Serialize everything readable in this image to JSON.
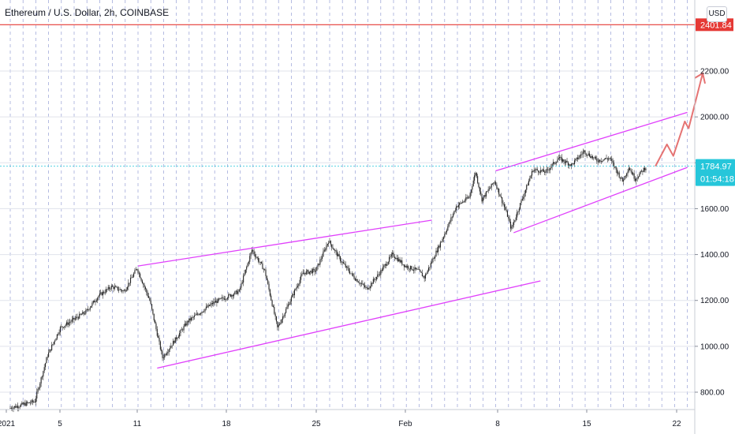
{
  "header": {
    "title": "Ethereum / U.S. Dollar, 2h, COINBASE",
    "currency_button": "USD"
  },
  "colors": {
    "channel": "#e040fb",
    "resistance_line": "#e53935",
    "arrow": "#e57373",
    "price_label_bg": "#26c6da",
    "candle_up": "#26a69a",
    "candle_down": "#ef5350",
    "candle": "#131722",
    "vgrid": "#3f51b5"
  },
  "chart_data": {
    "type": "candlestick",
    "title": "Ethereum / U.S. Dollar, 2h, COINBASE",
    "yaxis": {
      "ticks": [
        800,
        1000,
        1200,
        1400,
        1600,
        1800,
        2000,
        2200
      ],
      "tick_labels": [
        "800.00",
        "1000.00",
        "1200.00",
        "1400.00",
        "1600.00",
        "1800.00",
        "2000.00",
        "2200.00"
      ],
      "range": [
        730,
        2470
      ]
    },
    "xaxis": {
      "tick_labels": [
        "2021",
        "5",
        "11",
        "18",
        "25",
        "Feb",
        "8",
        "15",
        "22"
      ],
      "range_days": [
        -0.5,
        53
      ]
    },
    "price_path": [
      {
        "day": 0,
        "price": 730
      },
      {
        "day": 2,
        "price": 760
      },
      {
        "day": 3,
        "price": 960
      },
      {
        "day": 4,
        "price": 1080
      },
      {
        "day": 6,
        "price": 1150
      },
      {
        "day": 7,
        "price": 1220
      },
      {
        "day": 8,
        "price": 1260
      },
      {
        "day": 9,
        "price": 1240
      },
      {
        "day": 10,
        "price": 1340
      },
      {
        "day": 11,
        "price": 1200
      },
      {
        "day": 12,
        "price": 950
      },
      {
        "day": 13,
        "price": 1030
      },
      {
        "day": 14,
        "price": 1110
      },
      {
        "day": 16,
        "price": 1190
      },
      {
        "day": 18,
        "price": 1240
      },
      {
        "day": 19,
        "price": 1420
      },
      {
        "day": 20,
        "price": 1330
      },
      {
        "day": 21,
        "price": 1080
      },
      {
        "day": 22,
        "price": 1200
      },
      {
        "day": 23,
        "price": 1320
      },
      {
        "day": 24,
        "price": 1330
      },
      {
        "day": 25,
        "price": 1460
      },
      {
        "day": 26,
        "price": 1370
      },
      {
        "day": 27,
        "price": 1300
      },
      {
        "day": 28,
        "price": 1250
      },
      {
        "day": 29,
        "price": 1320
      },
      {
        "day": 30,
        "price": 1400
      },
      {
        "day": 31,
        "price": 1350
      },
      {
        "day": 32,
        "price": 1330
      },
      {
        "day": 32.5,
        "price": 1300
      },
      {
        "day": 33,
        "price": 1360
      },
      {
        "day": 34,
        "price": 1480
      },
      {
        "day": 35,
        "price": 1610
      },
      {
        "day": 36,
        "price": 1650
      },
      {
        "day": 36.5,
        "price": 1760
      },
      {
        "day": 37,
        "price": 1640
      },
      {
        "day": 38,
        "price": 1720
      },
      {
        "day": 39,
        "price": 1570
      },
      {
        "day": 39.3,
        "price": 1510
      },
      {
        "day": 40,
        "price": 1620
      },
      {
        "day": 41,
        "price": 1770
      },
      {
        "day": 42,
        "price": 1760
      },
      {
        "day": 43,
        "price": 1820
      },
      {
        "day": 44,
        "price": 1790
      },
      {
        "day": 45,
        "price": 1850
      },
      {
        "day": 46,
        "price": 1810
      },
      {
        "day": 47,
        "price": 1820
      },
      {
        "day": 48,
        "price": 1720
      },
      {
        "day": 48.5,
        "price": 1780
      },
      {
        "day": 49,
        "price": 1730
      },
      {
        "day": 49.8,
        "price": 1780
      }
    ],
    "horizontal_levels": [
      {
        "price": 2401.84,
        "label": "2401.84"
      }
    ],
    "trendlines": [
      {
        "from": {
          "day": 10,
          "price": 1350
        },
        "to": {
          "day": 33,
          "price": 1550
        }
      },
      {
        "from": {
          "day": 11.5,
          "price": 905
        },
        "to": {
          "day": 41.5,
          "price": 1285
        }
      },
      {
        "from": {
          "day": 38,
          "price": 1765
        },
        "to": {
          "day": 53,
          "price": 2020
        }
      },
      {
        "from": {
          "day": 39.4,
          "price": 1495
        },
        "to": {
          "day": 53,
          "price": 1780
        }
      }
    ],
    "projection_arrow": [
      {
        "day": 50.5,
        "price": 1785
      },
      {
        "day": 51.4,
        "price": 1880
      },
      {
        "day": 51.9,
        "price": 1830
      },
      {
        "day": 52.8,
        "price": 1980
      },
      {
        "day": 53.1,
        "price": 1950
      },
      {
        "day": 54.2,
        "price": 2190
      }
    ],
    "last_price": {
      "value": 1784.97,
      "label": "1784.97"
    },
    "countdown": "01:54:18"
  }
}
